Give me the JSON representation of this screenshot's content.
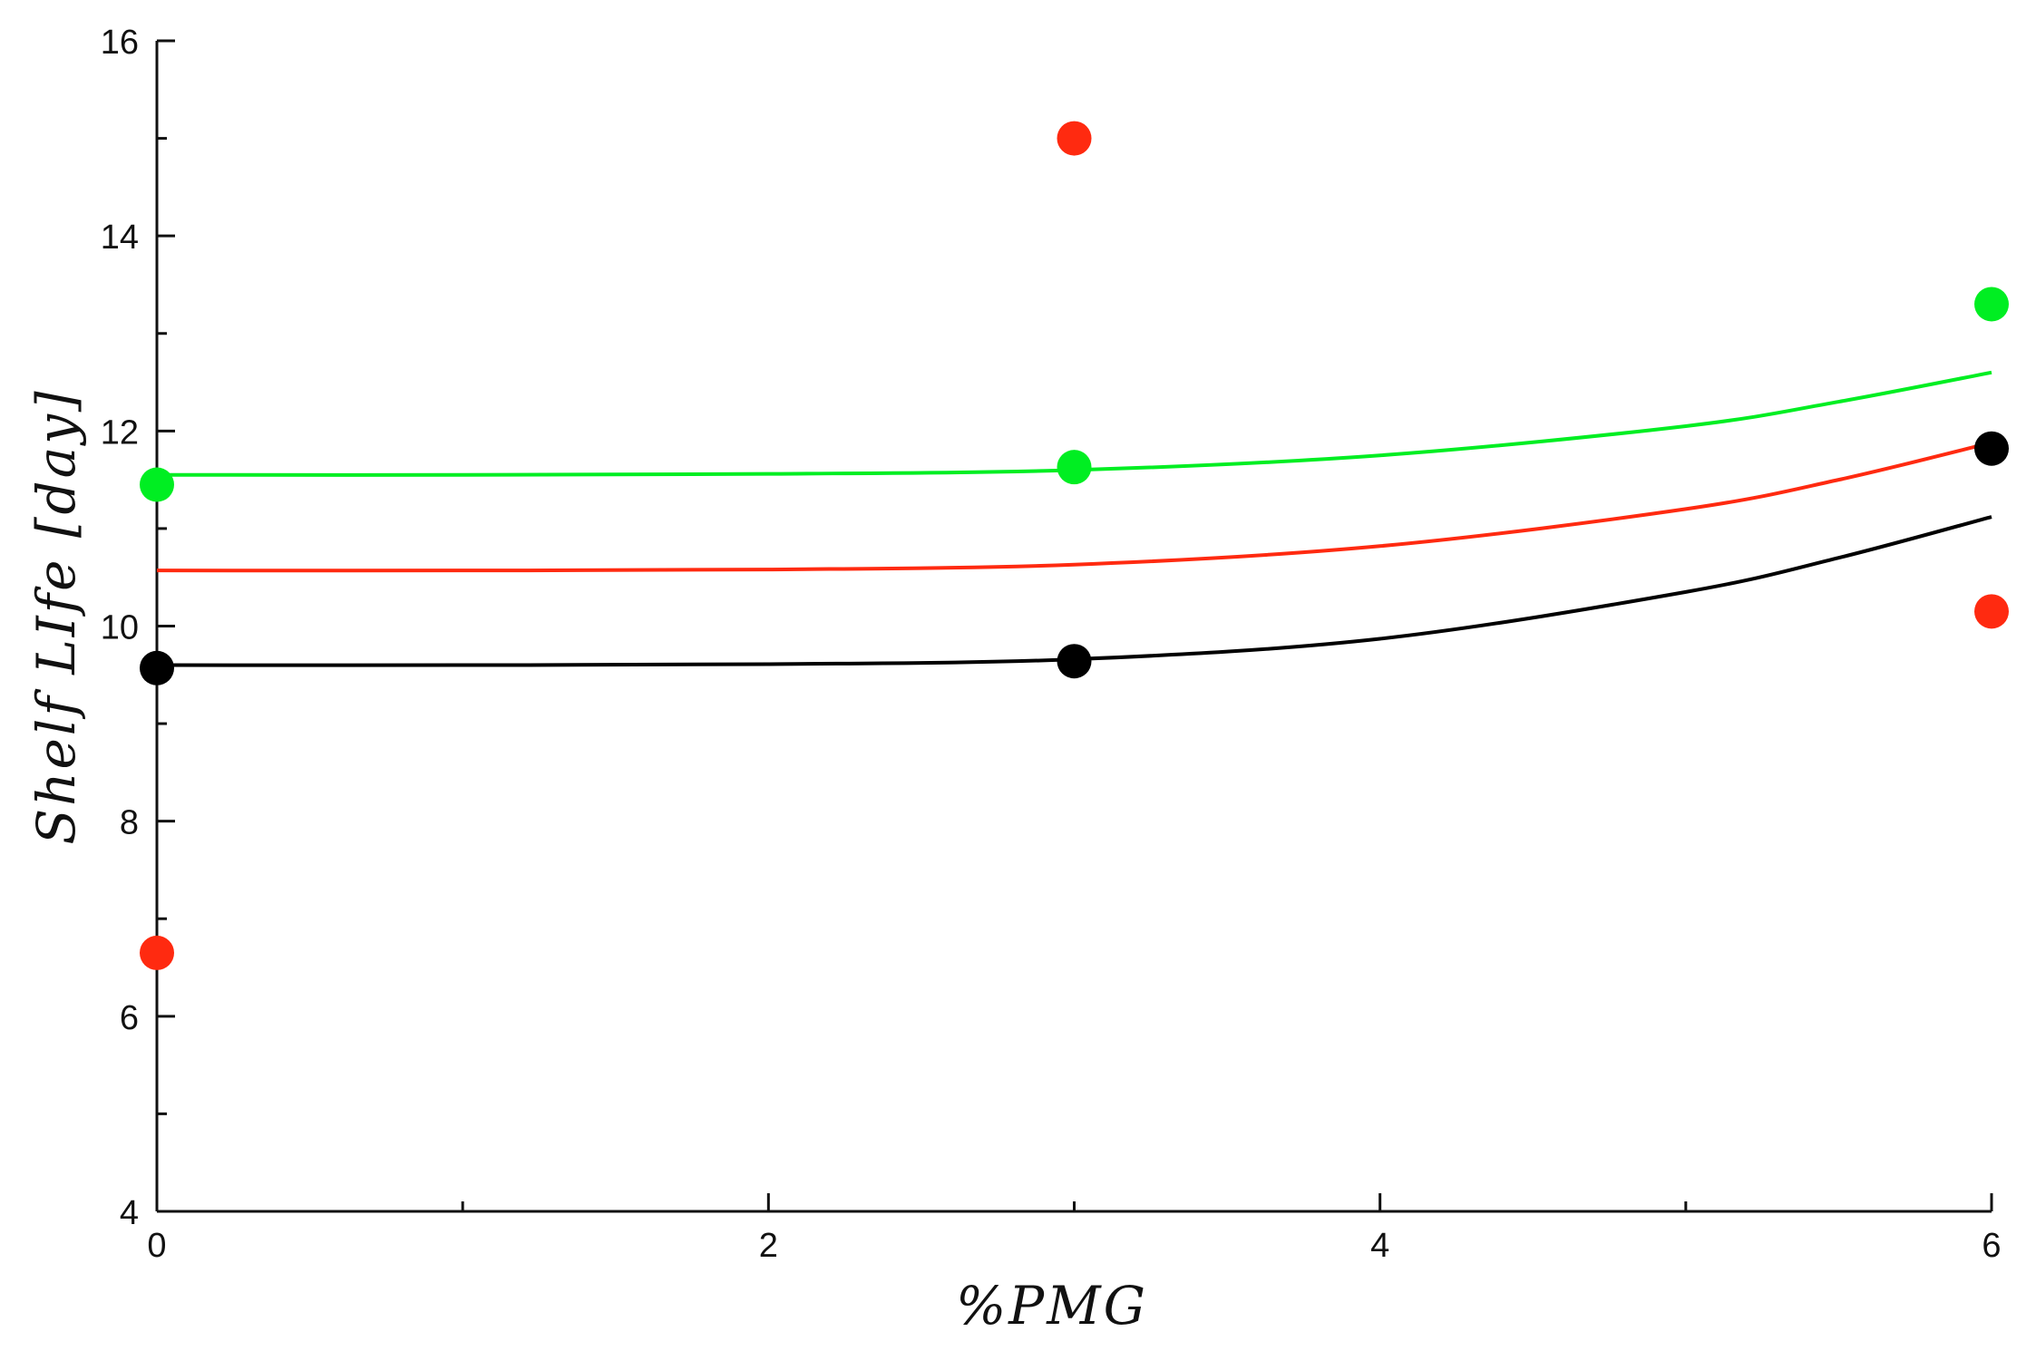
{
  "chart_data": {
    "type": "scatter",
    "title": "",
    "xlabel": "%PMG",
    "ylabel": "Shelf LIfe [day]",
    "xlim": [
      0,
      6
    ],
    "ylim": [
      4,
      16
    ],
    "x_ticks": [
      0,
      2,
      4,
      6
    ],
    "x_minor_ticks": [
      1,
      3,
      5
    ],
    "y_ticks": [
      4,
      6,
      8,
      10,
      12,
      14,
      16
    ],
    "y_minor_ticks": [
      5,
      7,
      9,
      11,
      13,
      15
    ],
    "grid": false,
    "legend": "none",
    "series": [
      {
        "color": "#00ee22",
        "points": [
          {
            "x": 0,
            "y": 11.45
          },
          {
            "x": 3,
            "y": 11.63
          },
          {
            "x": 6,
            "y": 13.3
          }
        ],
        "fit": [
          {
            "x": 0,
            "y": 11.55
          },
          {
            "x": 1,
            "y": 11.55
          },
          {
            "x": 2,
            "y": 11.56
          },
          {
            "x": 3,
            "y": 11.6
          },
          {
            "x": 4,
            "y": 11.75
          },
          {
            "x": 5,
            "y": 12.05
          },
          {
            "x": 5.5,
            "y": 12.3
          },
          {
            "x": 6,
            "y": 12.6
          }
        ]
      },
      {
        "color": "#ff2a10",
        "points": [
          {
            "x": 0,
            "y": 6.65
          },
          {
            "x": 3,
            "y": 15.0
          },
          {
            "x": 6,
            "y": 10.15
          }
        ],
        "fit": [
          {
            "x": 0,
            "y": 10.57
          },
          {
            "x": 1,
            "y": 10.57
          },
          {
            "x": 2,
            "y": 10.58
          },
          {
            "x": 3,
            "y": 10.63
          },
          {
            "x": 4,
            "y": 10.82
          },
          {
            "x": 5,
            "y": 11.2
          },
          {
            "x": 5.5,
            "y": 11.5
          },
          {
            "x": 6,
            "y": 11.88
          }
        ]
      },
      {
        "color": "#000000",
        "points": [
          {
            "x": 0,
            "y": 9.57
          },
          {
            "x": 3,
            "y": 9.64
          },
          {
            "x": 6,
            "y": 11.82
          }
        ],
        "fit": [
          {
            "x": 0,
            "y": 9.6
          },
          {
            "x": 1,
            "y": 9.6
          },
          {
            "x": 2,
            "y": 9.61
          },
          {
            "x": 3,
            "y": 9.66
          },
          {
            "x": 4,
            "y": 9.87
          },
          {
            "x": 5,
            "y": 10.35
          },
          {
            "x": 5.5,
            "y": 10.7
          },
          {
            "x": 6,
            "y": 11.12
          }
        ]
      }
    ]
  }
}
